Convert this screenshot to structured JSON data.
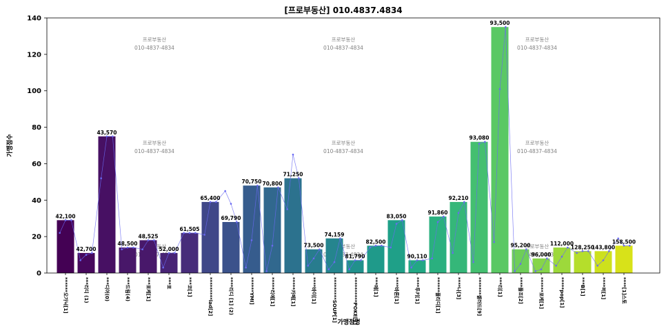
{
  "chart_data": {
    "type": "bar",
    "title": "[프로부동산] 010.4837.4834",
    "xlabel": "가맹점명",
    "ylabel": "가맹점수",
    "ylim": [
      0,
      140
    ],
    "yticks": [
      0,
      20,
      40,
      60,
      80,
      100,
      120,
      140
    ],
    "grid": false,
    "categories": [
      "******오가닉[1]",
      "***리디 (1)",
      "***디어(0)",
      "***드림(4)",
      "***포케[1]",
      "***포",
      "***코[1]",
      "*********lad[2]",
      "****리디 [1] (2)",
      "******YMI]",
      "*****리에[1]",
      "*****카페[1]",
      "****바이[1]",
      "*********SOUP[1]",
      "**********POKE[1]",
      "***에[1]",
      "****바론[1]",
      "****투키[1]",
      "******플리디[1]",
      "****나[3]",
      "*******셀러드[9]",
      "***리[1]",
      "****플조[2]",
      "******포케[1]",
      "*****pop[1]",
      "***B[1]",
      "****퍼[1]",
      "****[1]스토"
    ],
    "values": [
      29,
      11,
      75,
      14,
      18,
      11,
      22,
      39,
      28,
      48,
      47,
      52,
      13,
      19,
      7,
      15,
      29,
      7,
      31,
      39,
      72,
      135,
      13,
      8,
      14,
      12,
      12,
      15
    ],
    "bar_labels": [
      "42,100",
      "42,700",
      "43,570",
      "48,500",
      "48,525",
      "52,000",
      "61,505",
      "65,400",
      "69,790",
      "70,750",
      "70,800",
      "71,250",
      "73,500",
      "74,159",
      "81,790",
      "82,500",
      "83,050",
      "90,110",
      "91,860",
      "92,210",
      "93,080",
      "93,500",
      "95,200",
      "96,000",
      "112,000",
      "128,250",
      "143,800",
      "158,500"
    ],
    "bar_colors": [
      "#440154",
      "#46085c",
      "#471063",
      "#481769",
      "#48186a",
      "#482475",
      "#472c7a",
      "#3f4788",
      "#3b528b",
      "#365c8d",
      "#31688e",
      "#2c728e",
      "#287c8e",
      "#25858e",
      "#21918c",
      "#1f9a8a",
      "#1fa088",
      "#22a884",
      "#2ab07f",
      "#35b779",
      "#44bf70",
      "#5ac864",
      "#6ece58",
      "#86d549",
      "#9dd93b",
      "#b5de2b",
      "#cde11d",
      "#d8e219"
    ],
    "line_color": "#6a6af2",
    "series": [
      {
        "name": "",
        "values": [
          22,
          7,
          52,
          13,
          13,
          3,
          22,
          21,
          45,
          3,
          1,
          35,
          4,
          2,
          2,
          14,
          14,
          3,
          8,
          11,
          6,
          17,
          1,
          1,
          4,
          11,
          4,
          19
        ]
      },
      {
        "name": "",
        "values": [
          29,
          10,
          75,
          14,
          18,
          11,
          22,
          39,
          38,
          18,
          15,
          65,
          8,
          6,
          7,
          15,
          27,
          7,
          28,
          33,
          71,
          101,
          5,
          2,
          9,
          12,
          7,
          15
        ]
      },
      {
        "name": "",
        "values": [
          29,
          11,
          75,
          14,
          18,
          11,
          22,
          39,
          28,
          48,
          47,
          52,
          13,
          19,
          7,
          15,
          29,
          7,
          31,
          39,
          72,
          135,
          13,
          8,
          14,
          12,
          12,
          15
        ]
      }
    ],
    "watermark_line1": "프로부동산",
    "watermark_line2": "010-4837-4834"
  }
}
